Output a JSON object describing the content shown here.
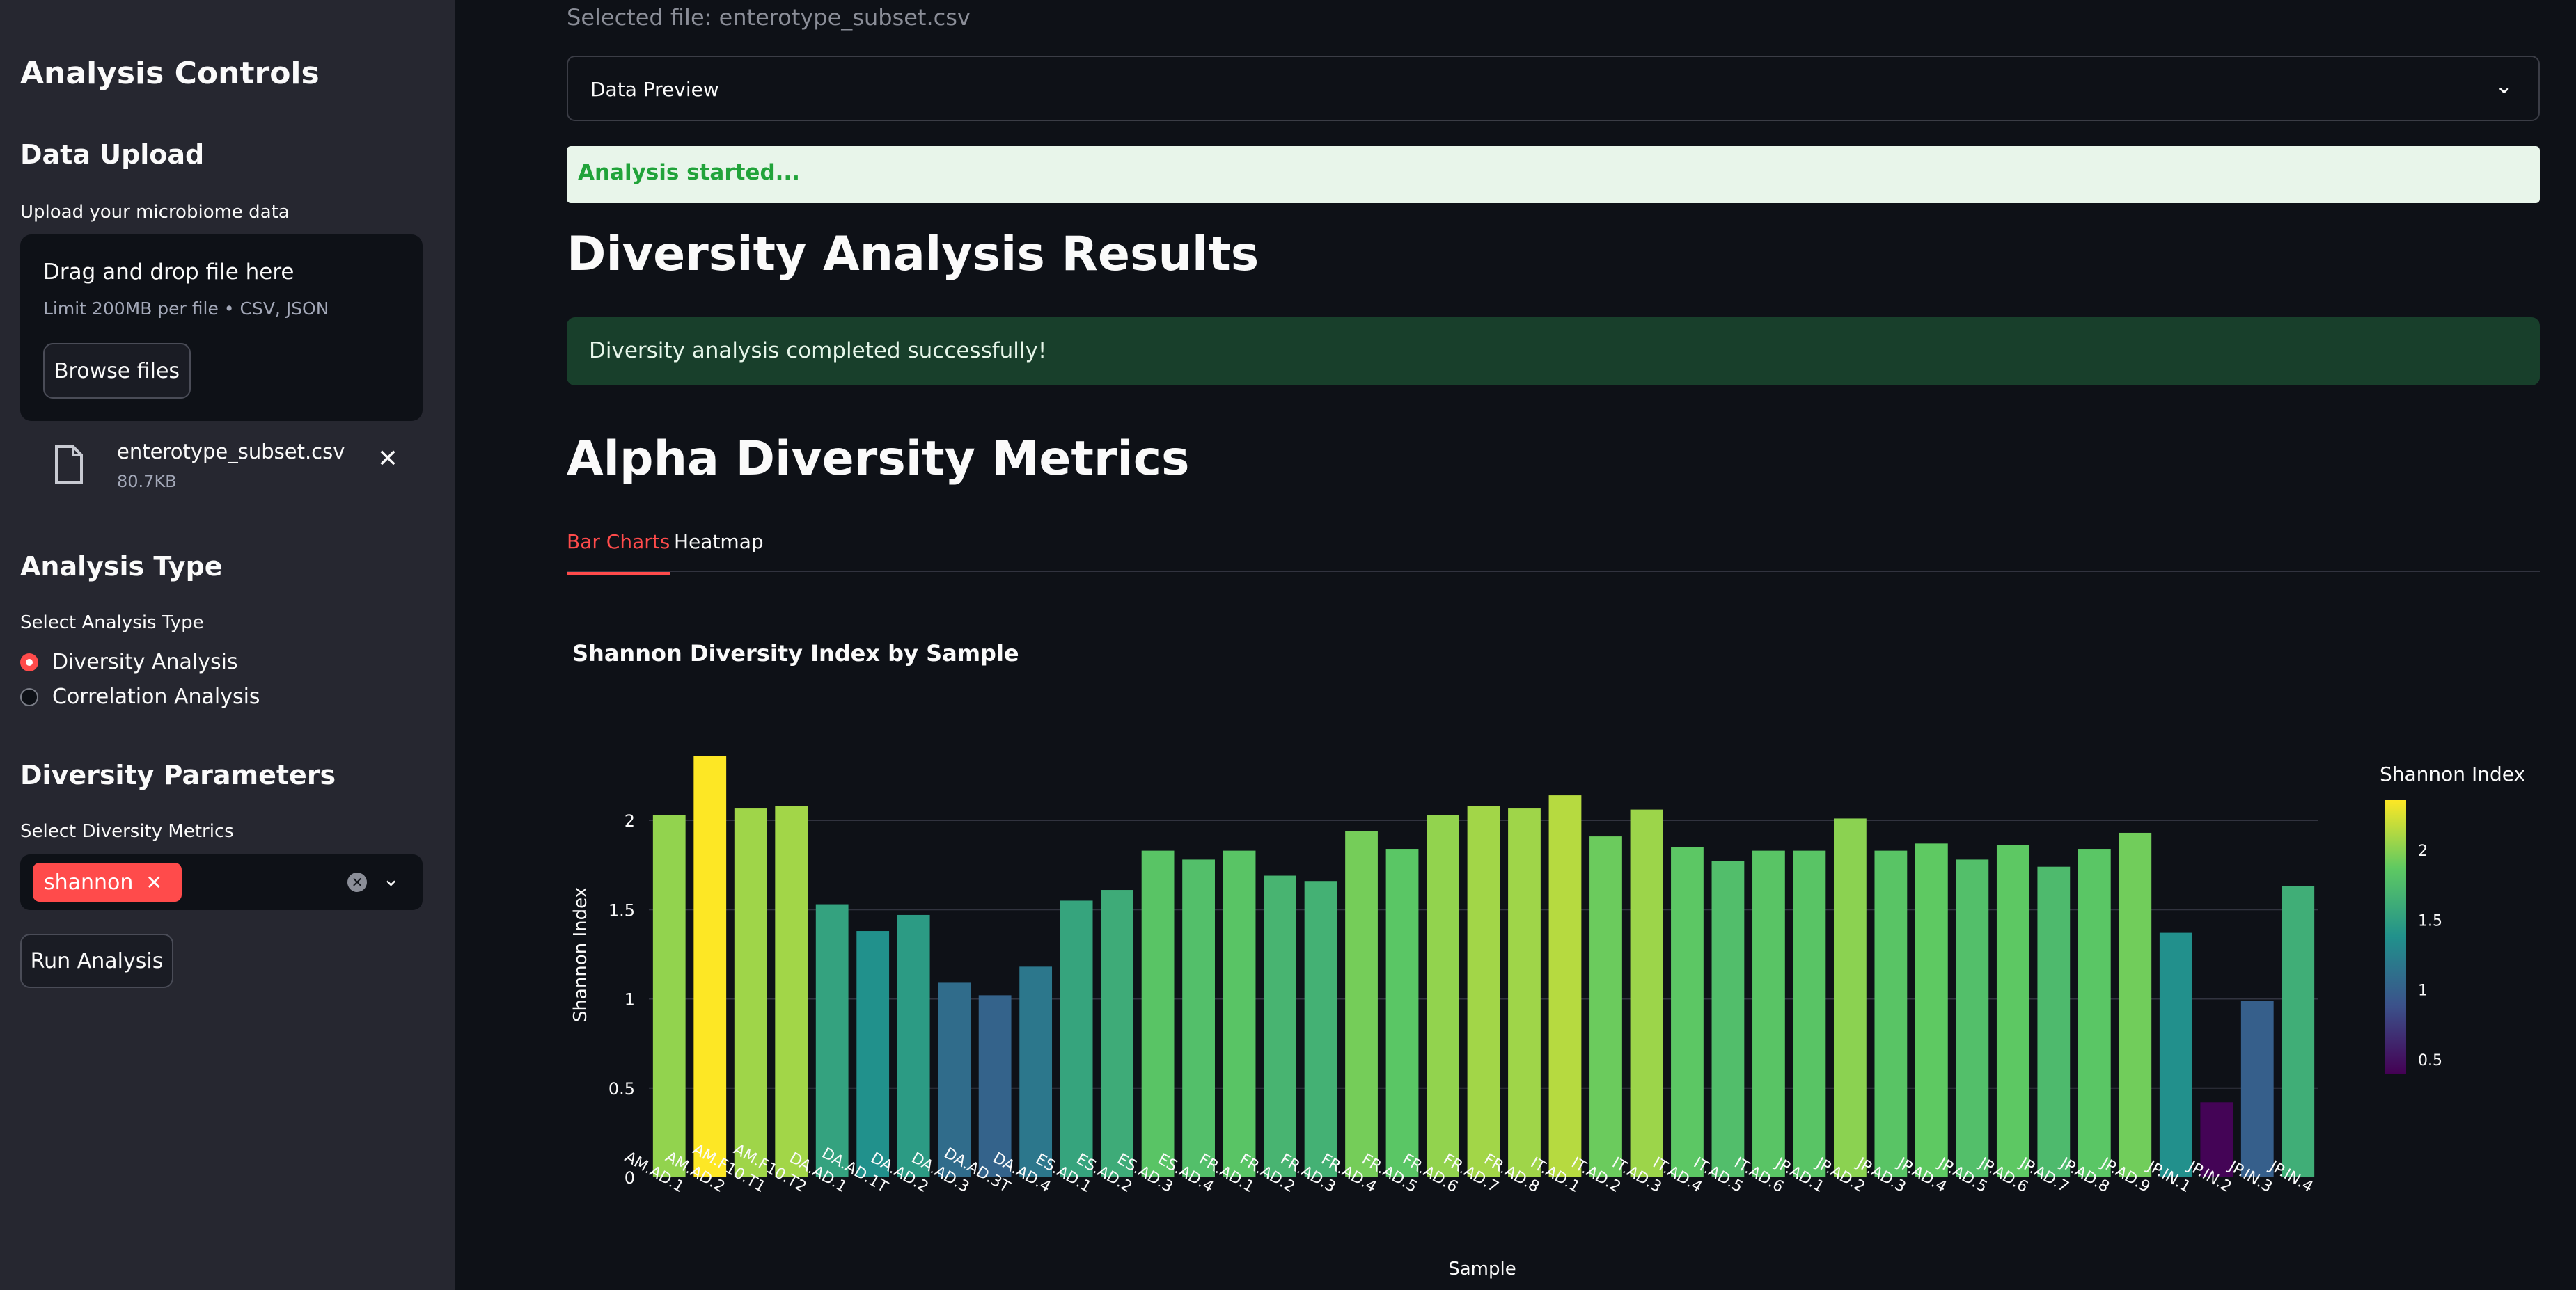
{
  "sidebar": {
    "title": "Analysis Controls",
    "data_upload": {
      "heading": "Data Upload",
      "label": "Upload your microbiome data",
      "dropzone_title": "Drag and drop file here",
      "dropzone_limit": "Limit 200MB per file • CSV, JSON",
      "browse_label": "Browse files",
      "file_name": "enterotype_subset.csv",
      "file_size": "80.7KB"
    },
    "analysis_type": {
      "heading": "Analysis Type",
      "label": "Select Analysis Type",
      "options": [
        "Diversity Analysis",
        "Correlation Analysis"
      ],
      "selected": "Diversity Analysis"
    },
    "diversity_params": {
      "heading": "Diversity Parameters",
      "label": "Select Diversity Metrics",
      "selected_tag": "shannon"
    },
    "run_label": "Run Analysis"
  },
  "main": {
    "selected_file": "Selected file: enterotype_subset.csv",
    "expander_label": "Data Preview",
    "status_info": "Analysis started...",
    "results_heading": "Diversity Analysis Results",
    "success_message": "Diversity analysis completed successfully!",
    "alpha_heading": "Alpha Diversity Metrics",
    "tabs": [
      "Bar Charts",
      "Heatmap"
    ],
    "active_tab": "Bar Charts"
  },
  "colors": {
    "accent": "#ff4b4b",
    "background": "#0e1117",
    "sidebar": "#262730"
  },
  "chart_data": {
    "type": "bar",
    "title": "Shannon Diversity Index by Sample",
    "xlabel": "Sample",
    "ylabel": "Shannon Index",
    "ylim": [
      0,
      2.4
    ],
    "yticks": [
      0,
      0.5,
      1,
      1.5,
      2
    ],
    "grid": true,
    "colorscale": "viridis",
    "colorbar": {
      "title": "Shannon Index",
      "ticks": [
        "0.5",
        "1",
        "1.5",
        "2"
      ],
      "range": [
        0.4,
        2.36
      ]
    },
    "categories": [
      "AM.AD.1",
      "AM.AD.2",
      "AM.F10.T1",
      "AM.F10.T2",
      "DA.AD.1",
      "DA.AD.1T",
      "DA.AD.2",
      "DA.AD.3",
      "DA.AD.3T",
      "DA.AD.4",
      "ES.AD.1",
      "ES.AD.2",
      "ES.AD.3",
      "ES.AD.4",
      "FR.AD.1",
      "FR.AD.2",
      "FR.AD.3",
      "FR.AD.4",
      "FR.AD.5",
      "FR.AD.6",
      "FR.AD.7",
      "FR.AD.8",
      "IT.AD.1",
      "IT.AD.2",
      "IT.AD.3",
      "IT.AD.4",
      "IT.AD.5",
      "IT.AD.6",
      "JP.AD.1",
      "JP.AD.2",
      "JP.AD.3",
      "JP.AD.4",
      "JP.AD.5",
      "JP.AD.6",
      "JP.AD.7",
      "JP.AD.8",
      "JP.AD.9",
      "JP.IN.1",
      "JP.IN.2",
      "JP.IN.3",
      "JP.IN.4"
    ],
    "values": [
      2.03,
      2.36,
      2.07,
      2.08,
      1.53,
      1.38,
      1.47,
      1.09,
      1.02,
      1.18,
      1.55,
      1.61,
      1.83,
      1.78,
      1.83,
      1.69,
      1.66,
      1.94,
      1.84,
      2.03,
      2.08,
      2.07,
      2.14,
      1.91,
      2.06,
      1.85,
      1.77,
      1.83,
      1.83,
      2.01,
      1.83,
      1.87,
      1.78,
      1.86,
      1.74,
      1.84,
      1.93,
      1.37,
      0.42,
      0.99,
      1.63
    ]
  }
}
